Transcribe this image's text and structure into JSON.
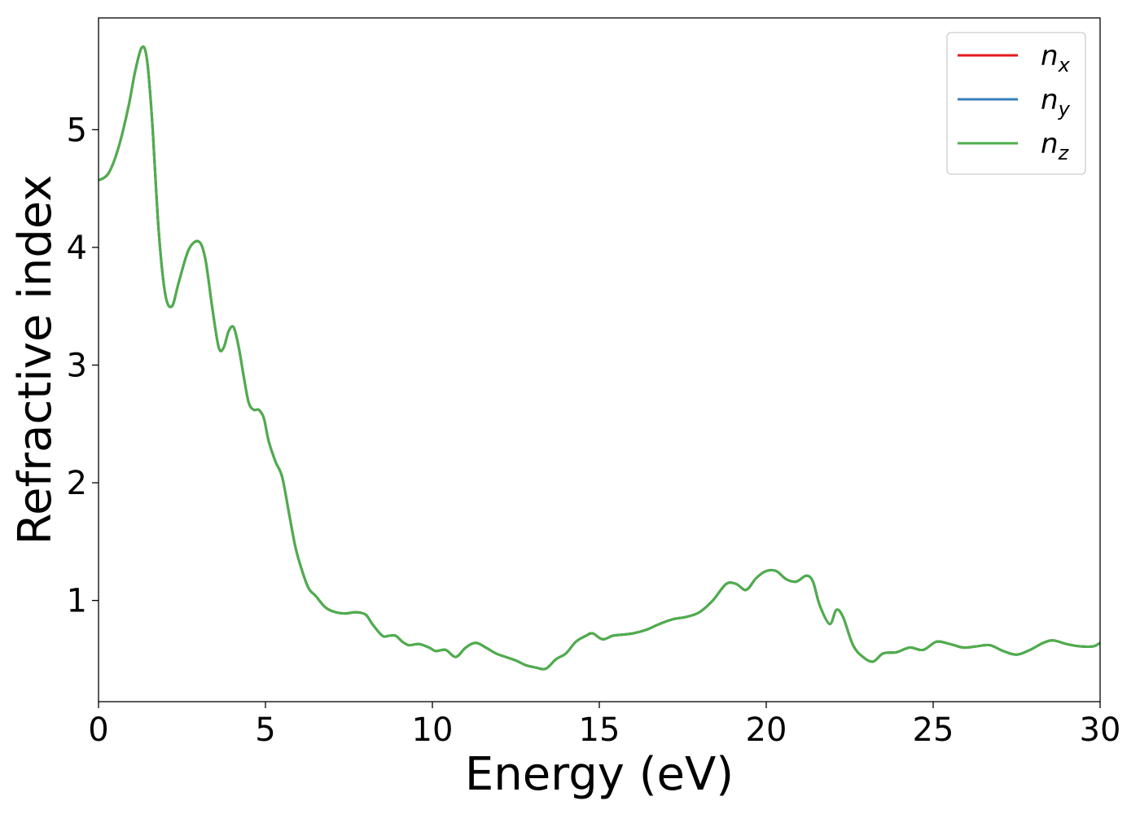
{
  "chart_data": {
    "type": "line",
    "xlabel": "Energy (eV)",
    "ylabel": "Refractive index",
    "xlim": [
      0,
      30
    ],
    "ylim": [
      0.14,
      5.95
    ],
    "xticks": [
      0,
      5,
      10,
      15,
      20,
      25,
      30
    ],
    "yticks": [
      1,
      2,
      3,
      4,
      5
    ],
    "grid": false,
    "legend_position": "top-right",
    "series": [
      {
        "name": "n",
        "subscript": "x",
        "color": "#e41a1c"
      },
      {
        "name": "n",
        "subscript": "y",
        "color": "#377eb8"
      },
      {
        "name": "n",
        "subscript": "z",
        "color": "#4daf4a"
      }
    ],
    "x": [
      0,
      0.3,
      0.6,
      0.9,
      1.1,
      1.3,
      1.45,
      1.6,
      1.8,
      2.0,
      2.2,
      2.4,
      2.7,
      3.0,
      3.2,
      3.4,
      3.6,
      3.75,
      3.9,
      4.05,
      4.2,
      4.35,
      4.5,
      4.65,
      4.8,
      4.95,
      5.1,
      5.3,
      5.5,
      5.7,
      5.9,
      6.1,
      6.3,
      6.5,
      6.8,
      7.1,
      7.4,
      7.7,
      8.0,
      8.2,
      8.5,
      8.7,
      8.9,
      9.1,
      9.3,
      9.6,
      9.9,
      10.1,
      10.4,
      10.7,
      11.0,
      11.3,
      11.6,
      11.9,
      12.2,
      12.5,
      12.8,
      13.1,
      13.4,
      13.7,
      14.0,
      14.3,
      14.6,
      14.8,
      15.1,
      15.4,
      15.7,
      16.0,
      16.4,
      16.8,
      17.2,
      17.6,
      18.0,
      18.4,
      18.8,
      19.1,
      19.4,
      19.7,
      20.0,
      20.3,
      20.6,
      20.9,
      21.2,
      21.4,
      21.6,
      21.9,
      22.1,
      22.3,
      22.6,
      22.9,
      23.2,
      23.5,
      23.9,
      24.3,
      24.7,
      25.1,
      25.5,
      25.9,
      26.3,
      26.7,
      27.1,
      27.5,
      27.9,
      28.3,
      28.6,
      29.0,
      29.4,
      29.8,
      30.0
    ],
    "y": [
      4.57,
      4.63,
      4.85,
      5.2,
      5.5,
      5.7,
      5.6,
      5.1,
      4.15,
      3.6,
      3.5,
      3.7,
      3.98,
      4.05,
      3.9,
      3.5,
      3.15,
      3.15,
      3.29,
      3.32,
      3.15,
      2.9,
      2.68,
      2.62,
      2.62,
      2.55,
      2.35,
      2.18,
      2.05,
      1.75,
      1.45,
      1.25,
      1.1,
      1.04,
      0.94,
      0.9,
      0.89,
      0.9,
      0.88,
      0.8,
      0.7,
      0.7,
      0.7,
      0.65,
      0.62,
      0.63,
      0.6,
      0.57,
      0.58,
      0.52,
      0.6,
      0.64,
      0.6,
      0.55,
      0.52,
      0.49,
      0.45,
      0.43,
      0.42,
      0.5,
      0.55,
      0.65,
      0.7,
      0.72,
      0.67,
      0.7,
      0.71,
      0.72,
      0.75,
      0.8,
      0.84,
      0.86,
      0.9,
      1.0,
      1.14,
      1.14,
      1.09,
      1.19,
      1.25,
      1.25,
      1.18,
      1.16,
      1.21,
      1.16,
      0.96,
      0.8,
      0.92,
      0.86,
      0.62,
      0.52,
      0.48,
      0.55,
      0.56,
      0.6,
      0.58,
      0.65,
      0.63,
      0.6,
      0.61,
      0.62,
      0.57,
      0.54,
      0.58,
      0.64,
      0.66,
      0.63,
      0.61,
      0.61,
      0.64
    ]
  }
}
